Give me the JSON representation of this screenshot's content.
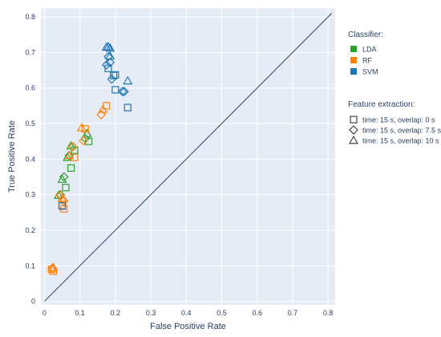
{
  "chart_data": {
    "type": "scatter",
    "xlabel": "False Positive Rate",
    "ylabel": "True Positive Rate",
    "xlim": [
      -0.01,
      0.82
    ],
    "ylim": [
      -0.01,
      0.825
    ],
    "x_ticks": [
      "0",
      "0.1",
      "0.2",
      "0.3",
      "0.4",
      "0.5",
      "0.6",
      "0.7",
      "0.8"
    ],
    "y_ticks": [
      "0",
      "0.1",
      "0.2",
      "0.3",
      "0.4",
      "0.5",
      "0.6",
      "0.7",
      "0.8"
    ],
    "grid": true,
    "reference_line": {
      "x": [
        0,
        0.81
      ],
      "y": [
        0,
        0.81
      ]
    },
    "legend_position": "right",
    "classifier_legend": {
      "title": "Classifier:",
      "items": [
        {
          "name": "LDA",
          "color": "#2ca02c"
        },
        {
          "name": "RF",
          "color": "#ff7f0e"
        },
        {
          "name": "SVM",
          "color": "#1f77b4"
        }
      ]
    },
    "feature_legend": {
      "title": "Feature extraction:",
      "items": [
        {
          "name": "time: 15 s, overlap: 0 s",
          "symbol": "square"
        },
        {
          "name": "time: 15 s, overlap: 7.5 s",
          "symbol": "diamond"
        },
        {
          "name": "time: 15 s, overlap: 10 s",
          "symbol": "triangle"
        }
      ]
    },
    "colors": {
      "LDA": "#2ca02c",
      "RF": "#ff7f0e",
      "SVM": "#1f77b4"
    },
    "series": [
      {
        "classifier": "LDA",
        "symbol": "square",
        "points": [
          [
            0.125,
            0.45
          ],
          [
            0.085,
            0.425
          ],
          [
            0.075,
            0.375
          ],
          [
            0.06,
            0.32
          ]
        ]
      },
      {
        "classifier": "LDA",
        "symbol": "diamond",
        "points": [
          [
            0.115,
            0.458
          ],
          [
            0.08,
            0.435
          ],
          [
            0.07,
            0.41
          ],
          [
            0.055,
            0.35
          ],
          [
            0.045,
            0.3
          ]
        ]
      },
      {
        "classifier": "LDA",
        "symbol": "triangle",
        "points": [
          [
            0.12,
            0.472
          ],
          [
            0.075,
            0.437
          ],
          [
            0.065,
            0.405
          ],
          [
            0.05,
            0.343
          ],
          [
            0.04,
            0.298
          ]
        ]
      },
      {
        "classifier": "RF",
        "symbol": "square",
        "points": [
          [
            0.175,
            0.55
          ],
          [
            0.115,
            0.485
          ],
          [
            0.085,
            0.405
          ],
          [
            0.05,
            0.27
          ],
          [
            0.055,
            0.26
          ],
          [
            0.025,
            0.085
          ],
          [
            0.02,
            0.09
          ]
        ]
      },
      {
        "classifier": "RF",
        "symbol": "diamond",
        "points": [
          [
            0.16,
            0.525
          ],
          [
            0.11,
            0.452
          ],
          [
            0.08,
            0.435
          ],
          [
            0.055,
            0.282
          ],
          [
            0.045,
            0.298
          ],
          [
            0.022,
            0.093
          ]
        ]
      },
      {
        "classifier": "RF",
        "symbol": "triangle",
        "points": [
          [
            0.165,
            0.54
          ],
          [
            0.105,
            0.488
          ],
          [
            0.07,
            0.41
          ],
          [
            0.05,
            0.29
          ],
          [
            0.025,
            0.095
          ]
        ]
      },
      {
        "classifier": "SVM",
        "symbol": "square",
        "points": [
          [
            0.235,
            0.545
          ],
          [
            0.2,
            0.595
          ],
          [
            0.195,
            0.635
          ],
          [
            0.2,
            0.637
          ],
          [
            0.18,
            0.655
          ],
          [
            0.05,
            0.268
          ]
        ]
      },
      {
        "classifier": "SVM",
        "symbol": "diamond",
        "points": [
          [
            0.22,
            0.59
          ],
          [
            0.19,
            0.625
          ],
          [
            0.175,
            0.665
          ],
          [
            0.185,
            0.672
          ],
          [
            0.18,
            0.688
          ],
          [
            0.225,
            0.59
          ]
        ]
      },
      {
        "classifier": "SVM",
        "symbol": "triangle",
        "points": [
          [
            0.235,
            0.62
          ],
          [
            0.185,
            0.69
          ],
          [
            0.175,
            0.715
          ],
          [
            0.185,
            0.712
          ],
          [
            0.18,
            0.716
          ]
        ]
      }
    ]
  }
}
